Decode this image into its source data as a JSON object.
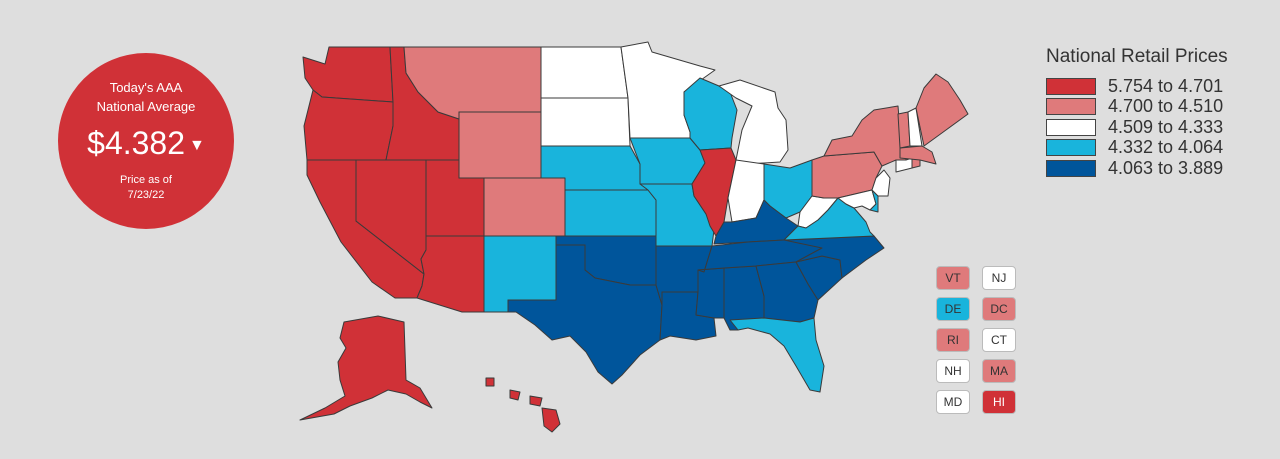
{
  "badge": {
    "line1": "Today's AAA",
    "line2": "National Average",
    "price": "$4.382",
    "price_as_of_label": "Price as of",
    "date": "7/23/22",
    "trend_icon": "caret-down-icon"
  },
  "legend": {
    "title": "National Retail Prices",
    "bins": [
      {
        "label": "5.754 to 4.701",
        "color": "#d03137"
      },
      {
        "label": "4.700 to 4.510",
        "color": "#df7a7b"
      },
      {
        "label": "4.509 to 4.333",
        "color": "#ffffff"
      },
      {
        "label": "4.332 to 4.064",
        "color": "#19b4dc"
      },
      {
        "label": "4.063 to 3.889",
        "color": "#00559b"
      }
    ]
  },
  "state_bins": {
    "WA": 0,
    "OR": 0,
    "CA": 0,
    "NV": 0,
    "ID": 0,
    "UT": 0,
    "AZ": 0,
    "IL": 0,
    "AK": 0,
    "HI": 0,
    "MT": 1,
    "WY": 1,
    "CO": 1,
    "NY": 1,
    "PA": 1,
    "ME": 1,
    "VT": 1,
    "DC": 1,
    "RI": 1,
    "MA": 1,
    "ND": 2,
    "SD": 2,
    "MN": 2,
    "MI": 2,
    "IN": 2,
    "WV": 2,
    "NJ": 2,
    "CT": 2,
    "NH": 2,
    "MD": 2,
    "NE": 3,
    "KS": 3,
    "IA": 3,
    "MO": 3,
    "WI": 3,
    "OH": 3,
    "VA": 3,
    "NM": 3,
    "FL": 3,
    "DE": 3,
    "TX": 4,
    "OK": 4,
    "AR": 4,
    "LA": 4,
    "MS": 4,
    "AL": 4,
    "GA": 4,
    "TN": 4,
    "KY": 4,
    "SC": 4,
    "NC": 4
  },
  "small_states": [
    {
      "abbr": "VT"
    },
    {
      "abbr": "NJ"
    },
    {
      "abbr": "DE"
    },
    {
      "abbr": "DC"
    },
    {
      "abbr": "RI"
    },
    {
      "abbr": "CT"
    },
    {
      "abbr": "NH"
    },
    {
      "abbr": "MA"
    },
    {
      "abbr": "MD"
    },
    {
      "abbr": "HI"
    }
  ]
}
